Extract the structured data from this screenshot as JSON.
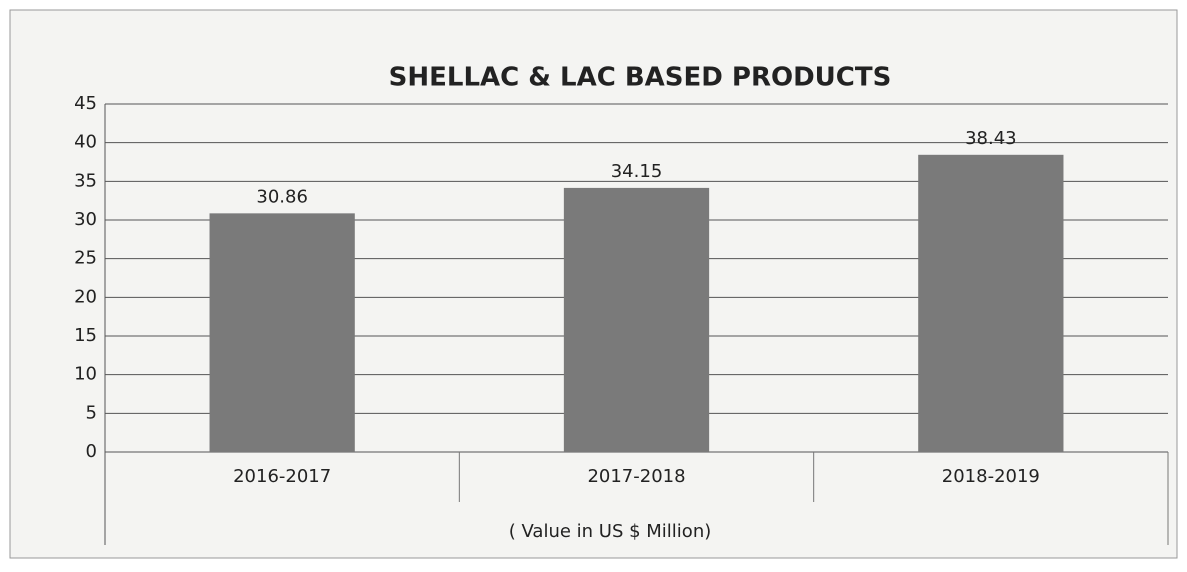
{
  "chart_data": {
    "type": "bar",
    "title": "SHELLAC & LAC BASED PRODUCTS",
    "categories": [
      "2016-2017",
      "2017-2018",
      "2018-2019"
    ],
    "values": [
      30.86,
      34.15,
      38.43
    ],
    "color": "#7a7a7a",
    "xlabel": "( Value in US $ Million)",
    "ylim": [
      0,
      45
    ],
    "yticks": [
      0,
      5,
      10,
      15,
      20,
      25,
      30,
      35,
      40,
      45
    ],
    "grid": true
  }
}
